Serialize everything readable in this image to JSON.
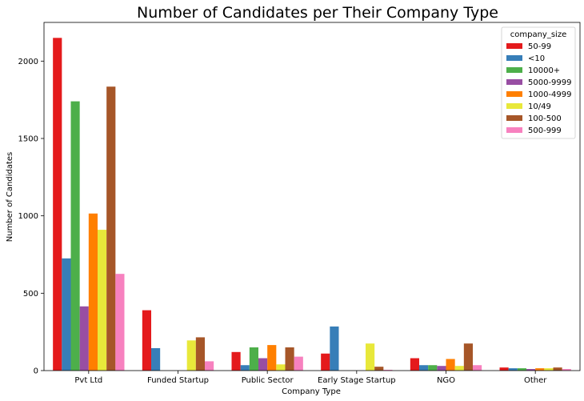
{
  "chart_data": {
    "type": "bar",
    "title": "Number of Candidates per Their Company Type",
    "xlabel": "Company Type",
    "ylabel": "Number of Candidates",
    "ylim": [
      0,
      2250
    ],
    "yticks": [
      0,
      500,
      1000,
      1500,
      2000
    ],
    "grid": false,
    "legend_title": "company_size",
    "legend_position": "top-right",
    "categories": [
      "Pvt Ltd",
      "Funded Startup",
      "Public Sector",
      "Early Stage Startup",
      "NGO",
      "Other"
    ],
    "series": [
      {
        "name": "50-99",
        "color": "#e41a1c",
        "values": [
          2150,
          390,
          120,
          110,
          80,
          20
        ]
      },
      {
        "name": "<10",
        "color": "#377eb8",
        "values": [
          725,
          145,
          35,
          285,
          35,
          15
        ]
      },
      {
        "name": "10000+",
        "color": "#4daf4a",
        "values": [
          1740,
          0,
          150,
          0,
          35,
          15
        ]
      },
      {
        "name": "5000-9999",
        "color": "#984ea3",
        "values": [
          415,
          0,
          80,
          0,
          30,
          10
        ]
      },
      {
        "name": "1000-4999",
        "color": "#ff7f00",
        "values": [
          1015,
          0,
          165,
          0,
          75,
          15
        ]
      },
      {
        "name": "10/49",
        "color": "#e8e83a",
        "values": [
          910,
          195,
          40,
          175,
          30,
          15
        ]
      },
      {
        "name": "100-500",
        "color": "#a65628",
        "values": [
          1835,
          215,
          150,
          25,
          175,
          20
        ]
      },
      {
        "name": "500-999",
        "color": "#f781bf",
        "values": [
          625,
          60,
          90,
          5,
          35,
          10
        ]
      }
    ]
  }
}
